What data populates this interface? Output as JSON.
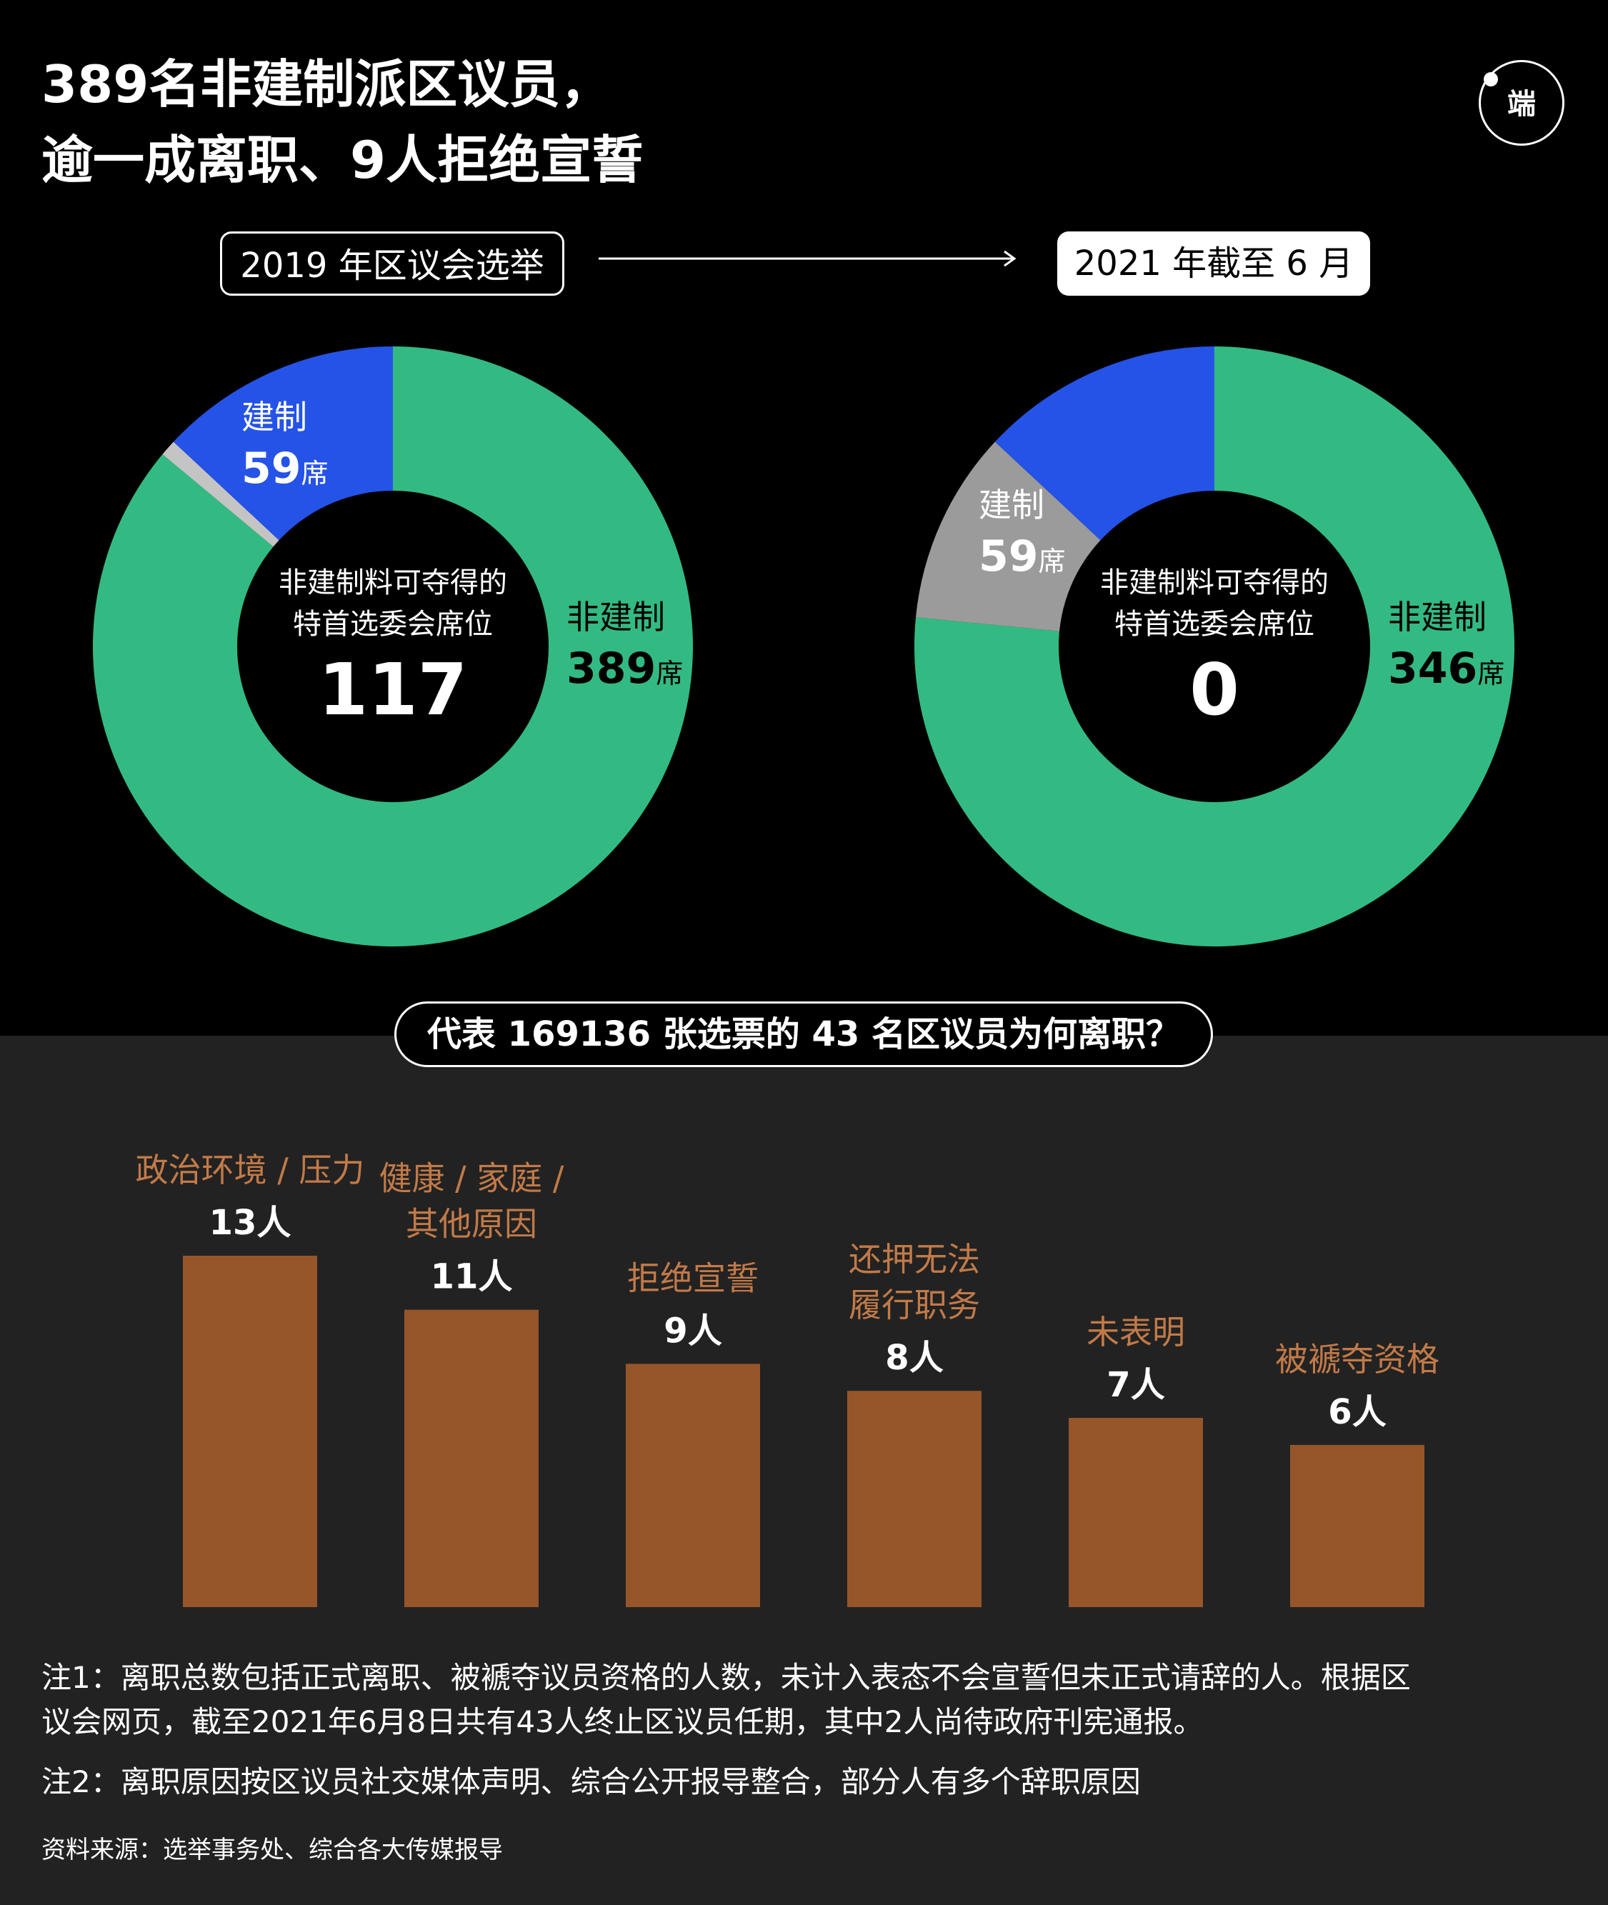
{
  "title": {
    "line1": "389名非建制派区议员，",
    "line2": "逾一成离职、9人拒绝宣誓"
  },
  "logo": {
    "text": "端",
    "icon": "duan-media-logo-icon"
  },
  "timeline": {
    "left_label": "2019 年区议会选举",
    "right_label": "2021 年截至 6 月",
    "arrow_icon": "right-arrow-icon"
  },
  "colors": {
    "non_establishment": "#33ba82",
    "establishment": "#2553e8",
    "other_2019": "#c4c4c4",
    "vacant_2021": "#9b9b9b",
    "bar": "#96562a",
    "bar_label": "#c27a48",
    "bottom_bg": "#222222"
  },
  "chart_data": [
    {
      "type": "pie",
      "title": "2019 年区议会选举",
      "donut": true,
      "slices": [
        {
          "label": "非建制",
          "value": 389,
          "color": "#33ba82"
        },
        {
          "label": "",
          "value": 4,
          "color": "#c4c4c4"
        },
        {
          "label": "建制",
          "value": 59,
          "color": "#2553e8"
        }
      ],
      "center_text": "非建制料可夺得的\n特首选委会席位",
      "center_value": "117",
      "unit": "席"
    },
    {
      "type": "pie",
      "title": "2021 年截至 6 月",
      "donut": true,
      "slices": [
        {
          "label": "非建制",
          "value": 346,
          "color": "#33ba82"
        },
        {
          "label": "",
          "value": 47,
          "color": "#9b9b9b"
        },
        {
          "label": "建制",
          "value": 59,
          "color": "#2553e8"
        }
      ],
      "center_text": "非建制料可夺得的\n特首选委会席位",
      "center_value": "0",
      "unit": "席"
    },
    {
      "type": "bar",
      "title": "代表 169136 张选票的 43 名区议员为何离职？",
      "categories": [
        "政治环境 / 压力",
        "健康 / 家庭 /\n其他原因",
        "拒绝宣誓",
        "还押无法\n履行职务",
        "未表明",
        "被褫夺资格"
      ],
      "values": [
        13,
        11,
        9,
        8,
        7,
        6
      ],
      "value_suffix": "人"
    }
  ],
  "notes": {
    "note1_line1": "注1：离职总数包括正式离职、被褫夺议员资格的人数，未计入表态不会宣誓但未正式请辞的人。根据区",
    "note1_line2": "议会网页，截至2021年6月8日共有43人终止区议员任期，其中2人尚待政府刊宪通报。",
    "note2": "注2：离职原因按区议员社交媒体声明、综合公开报导整合，部分人有多个辞职原因",
    "source": "资料来源：选举事务处、综合各大传媒报导"
  }
}
